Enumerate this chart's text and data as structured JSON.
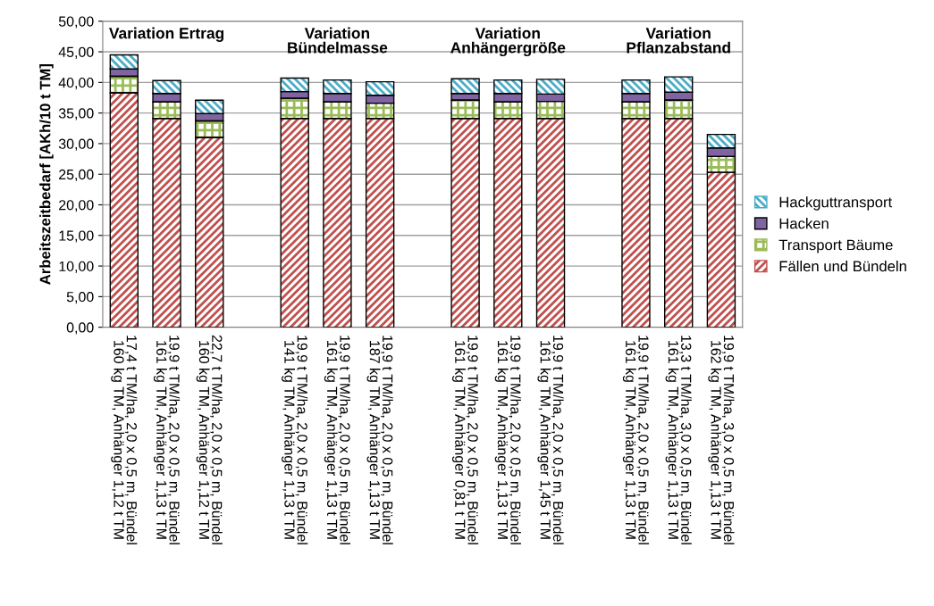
{
  "chart_data": {
    "type": "bar",
    "stacked": true,
    "ylabel": "Arbeitszeitbedarf [AKh/10 t TM]",
    "categories": [
      "17,4 t TM/ha, 2,0 x 0,5 m, Bündel\n160 kg TM, Anhänger 1,12 t TM",
      "19,9 t TM/ha, 2,0 x 0,5 m, Bündel\n161 kg TM, Anhänger 1,13 t TM",
      "22,7 t TM/ha, 2,0 x 0,5 m, Bündel\n160 kg TM, Anhänger 1,12 t TM",
      null,
      "19,9 t TM/ha, 2,0 x 0,5 m, Bündel\n141 kg TM, Anhänger 1,13 t TM",
      "19,9 t TM/ha, 2,0 x 0,5 m, Bündel\n161 kg TM, Anhänger 1,13 t TM",
      "19,9 t TM/ha, 2,0 x 0,5 m, Bündel\n187 kg TM, Anhänger 1,13 t TM",
      null,
      "19,9 t TM/ha, 2,0 x 0,5 m, Bündel\n161 kg TM, Anhänger 0,81 t TM",
      "19,9 t TM/ha, 2,0 x 0,5 m, Bündel\n161 kg TM, Anhänger 1,13 t TM",
      "19,9 t TM/ha, 2,0 x 0,5 m, Bündel\n161 kg TM, Anhänger 1,45 t TM",
      null,
      "19,9 t TM/ha, 2,0 x 0,5 m, Bündel\n161 kg TM, Anhänger 1,13 t TM",
      "13,3 t TM/ha, 3,0 x 0,5 m, Bündel\n161 kg TM, Anhänger 1,13 t TM",
      "19,9 t TM/ha, 3,0 x 0,5 m, Bündel\n162 kg TM, Anhänger 1,13 t TM"
    ],
    "series": [
      {
        "name": "Fällen und Bündeln",
        "color": "#c0504d",
        "values": [
          38.3,
          34.1,
          31.0,
          null,
          34.1,
          34.1,
          34.1,
          null,
          34.1,
          34.1,
          34.1,
          null,
          34.1,
          34.1,
          25.3
        ]
      },
      {
        "name": "Transport Bäume",
        "color": "#9bbb59",
        "values": [
          2.7,
          2.7,
          2.7,
          null,
          3.3,
          2.7,
          2.5,
          null,
          3.0,
          2.7,
          2.8,
          null,
          2.7,
          3.0,
          2.6
        ]
      },
      {
        "name": "Hacken",
        "color": "#8064a2",
        "values": [
          1.2,
          1.4,
          1.2,
          null,
          1.1,
          1.4,
          1.3,
          null,
          1.1,
          1.4,
          1.2,
          null,
          1.4,
          1.3,
          1.4
        ]
      },
      {
        "name": "Hackguttransport",
        "color": "#4bacc6",
        "values": [
          2.3,
          2.1,
          2.2,
          null,
          2.2,
          2.2,
          2.2,
          null,
          2.4,
          2.2,
          2.4,
          null,
          2.2,
          2.5,
          2.2
        ]
      }
    ],
    "annotations": [
      "Variation Ertrag",
      "Variation\nBündelmasse",
      "Variation\nAnhängergröße",
      "Variation\nPflanzabstand"
    ],
    "ylim": [
      0,
      50
    ],
    "yticks": [
      {
        "value": 0,
        "label": "0,00"
      },
      {
        "value": 5,
        "label": "5,00"
      },
      {
        "value": 10,
        "label": "10,00"
      },
      {
        "value": 15,
        "label": "15,00"
      },
      {
        "value": 20,
        "label": "20,00"
      },
      {
        "value": 25,
        "label": "25,00"
      },
      {
        "value": 30,
        "label": "30,00"
      },
      {
        "value": 35,
        "label": "35,00"
      },
      {
        "value": 40,
        "label": "40,00"
      },
      {
        "value": 45,
        "label": "45,00"
      },
      {
        "value": 50,
        "label": "50,00"
      }
    ],
    "grid": "y",
    "legend": "right"
  }
}
